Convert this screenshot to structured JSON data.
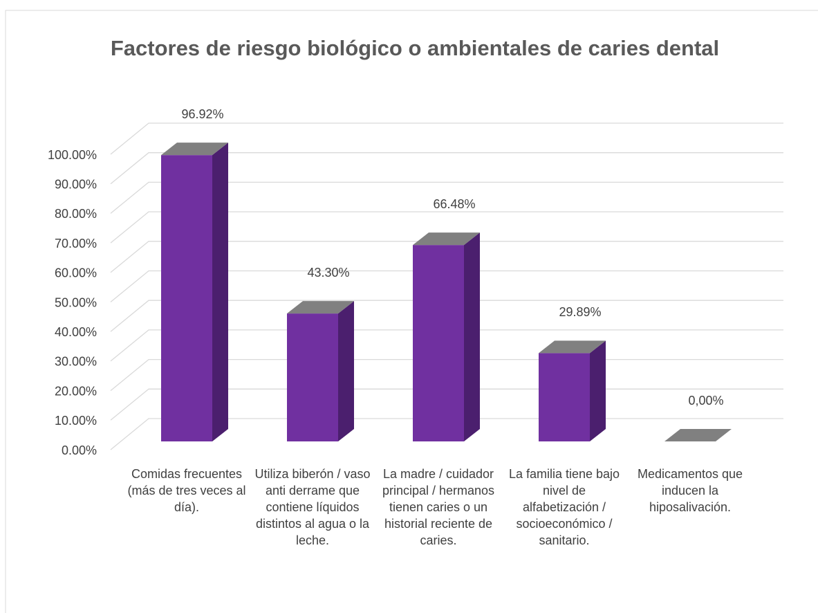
{
  "chart_data": {
    "type": "bar3d",
    "title": "Factores de riesgo biológico o ambientales de caries dental",
    "categories": [
      "Comidas frecuentes (más de tres veces al día).",
      "Utiliza biberón / vaso anti derrame que contiene líquidos distintos al agua o la leche.",
      "La madre / cuidador principal / hermanos tienen caries o un historial reciente de caries.",
      "La familia tiene bajo nivel de alfabetización / socioeconómico / sanitario.",
      "Medicamentos que inducen la hiposalivación."
    ],
    "values": [
      96.92,
      43.3,
      66.48,
      29.89,
      0
    ],
    "value_labels": [
      "96.92%",
      "43.30%",
      "66.48%",
      "29.89%",
      "0,00%"
    ],
    "color": "#7030a0",
    "side_color": "#4b1f6e",
    "top_color": "#808080",
    "ylim": [
      0,
      100
    ],
    "yticks": [
      {
        "value": 0,
        "label": "0.00%"
      },
      {
        "value": 10,
        "label": "10.00%"
      },
      {
        "value": 20,
        "label": "20.00%"
      },
      {
        "value": 30,
        "label": "30.00%"
      },
      {
        "value": 40,
        "label": "40.00%"
      },
      {
        "value": 50,
        "label": "50.00%"
      },
      {
        "value": 60,
        "label": "60.00%"
      },
      {
        "value": 70,
        "label": "70.00%"
      },
      {
        "value": 80,
        "label": "80.00%"
      },
      {
        "value": 90,
        "label": "90.00%"
      },
      {
        "value": 100,
        "label": "100.00%"
      }
    ],
    "grid": true
  }
}
